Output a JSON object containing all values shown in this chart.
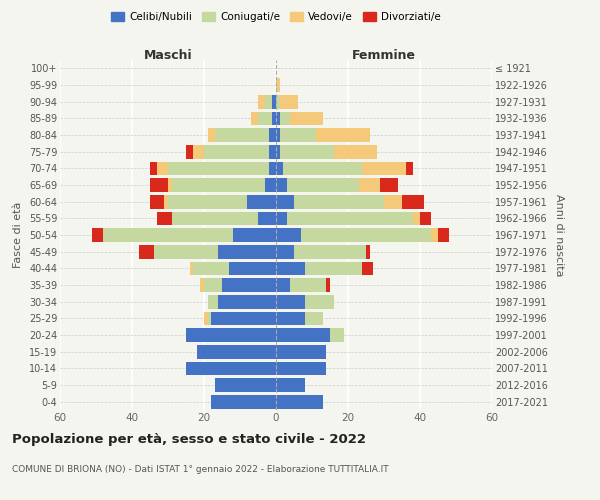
{
  "age_groups": [
    "0-4",
    "5-9",
    "10-14",
    "15-19",
    "20-24",
    "25-29",
    "30-34",
    "35-39",
    "40-44",
    "45-49",
    "50-54",
    "55-59",
    "60-64",
    "65-69",
    "70-74",
    "75-79",
    "80-84",
    "85-89",
    "90-94",
    "95-99",
    "100+"
  ],
  "birth_years": [
    "2017-2021",
    "2012-2016",
    "2007-2011",
    "2002-2006",
    "1997-2001",
    "1992-1996",
    "1987-1991",
    "1982-1986",
    "1977-1981",
    "1972-1976",
    "1967-1971",
    "1962-1966",
    "1957-1961",
    "1952-1956",
    "1947-1951",
    "1942-1946",
    "1937-1941",
    "1932-1936",
    "1927-1931",
    "1922-1926",
    "≤ 1921"
  ],
  "maschi": {
    "celibi": [
      18,
      17,
      25,
      22,
      25,
      18,
      16,
      15,
      13,
      16,
      12,
      5,
      8,
      3,
      2,
      2,
      2,
      1,
      1,
      0,
      0
    ],
    "coniugati": [
      0,
      0,
      0,
      0,
      0,
      1,
      3,
      5,
      10,
      18,
      36,
      24,
      22,
      26,
      28,
      18,
      15,
      4,
      2,
      0,
      0
    ],
    "vedovi": [
      0,
      0,
      0,
      0,
      0,
      1,
      0,
      1,
      1,
      0,
      0,
      0,
      1,
      1,
      3,
      3,
      2,
      2,
      2,
      0,
      0
    ],
    "divorziati": [
      0,
      0,
      0,
      0,
      0,
      0,
      0,
      0,
      0,
      4,
      3,
      4,
      4,
      5,
      2,
      2,
      0,
      0,
      0,
      0,
      0
    ]
  },
  "femmine": {
    "nubili": [
      13,
      8,
      14,
      14,
      15,
      8,
      8,
      4,
      8,
      5,
      7,
      3,
      5,
      3,
      2,
      1,
      1,
      1,
      0,
      0,
      0
    ],
    "coniugate": [
      0,
      0,
      0,
      0,
      4,
      5,
      8,
      10,
      16,
      20,
      36,
      35,
      25,
      20,
      22,
      15,
      10,
      3,
      1,
      0,
      0
    ],
    "vedove": [
      0,
      0,
      0,
      0,
      0,
      0,
      0,
      0,
      0,
      0,
      2,
      2,
      5,
      6,
      12,
      12,
      15,
      9,
      5,
      1,
      0
    ],
    "divorziate": [
      0,
      0,
      0,
      0,
      0,
      0,
      0,
      1,
      3,
      1,
      3,
      3,
      6,
      5,
      2,
      0,
      0,
      0,
      0,
      0,
      0
    ]
  },
  "colors": {
    "celibi_nubili": "#4472c4",
    "coniugati": "#c5d8a0",
    "vedovi": "#f5c97a",
    "divorziati": "#d9291c"
  },
  "xlim": 60,
  "title": "Popolazione per età, sesso e stato civile - 2022",
  "subtitle": "COMUNE DI BRIONA (NO) - Dati ISTAT 1° gennaio 2022 - Elaborazione TUTTITALIA.IT",
  "ylabel": "Fasce di età",
  "ylabel_right": "Anni di nascita",
  "xlabel_left": "Maschi",
  "xlabel_right": "Femmine",
  "legend_labels": [
    "Celibi/Nubili",
    "Coniugati/e",
    "Vedovi/e",
    "Divorziati/e"
  ],
  "bg_color": "#f5f5f0"
}
